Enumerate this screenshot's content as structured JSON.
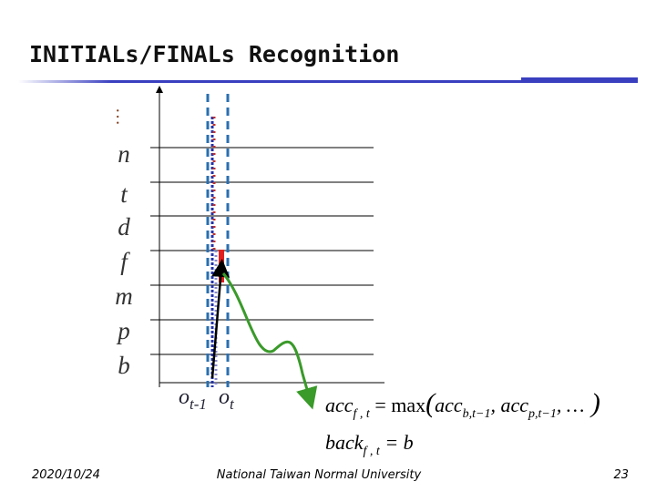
{
  "header": {
    "title": "INITIALs/FINALs Recognition"
  },
  "labels": [
    "…",
    "n",
    "t",
    "d",
    "f",
    "m",
    "p",
    "b"
  ],
  "observations": [
    {
      "base": "o",
      "sub": "t-1"
    },
    {
      "base": "o",
      "sub": "t"
    }
  ],
  "formulas": [
    [
      {
        "text": "acc"
      },
      {
        "text": "f , t",
        "sub": true
      },
      {
        "text": " = max"
      },
      {
        "text": "("
      },
      {
        "text": "acc"
      },
      {
        "text": "b,t−1",
        "sub": true
      },
      {
        "text": ", "
      },
      {
        "text": "acc"
      },
      {
        "text": "p,t−1",
        "sub": true
      },
      {
        "text": ", …"
      },
      {
        "text": " )"
      }
    ],
    [
      {
        "text": "back"
      },
      {
        "text": "f , t",
        "sub": true
      },
      {
        "text": " = b"
      }
    ]
  ],
  "footer": {
    "date": "2020/10/24",
    "organization": "National Taiwan Normal University",
    "page": "23"
  }
}
